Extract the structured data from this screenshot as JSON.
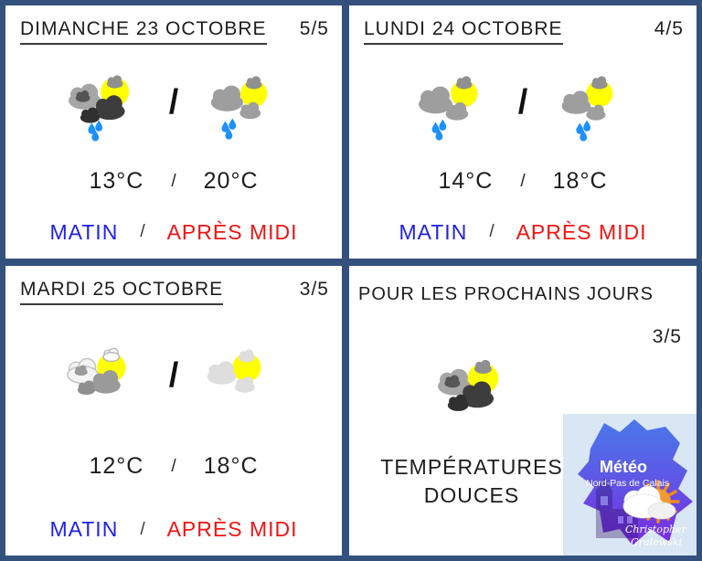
{
  "theme": {
    "border_color": "#34517e",
    "background": "#ffffff",
    "matin_color": "#1f1fe8",
    "apres_midi_color": "#f01414",
    "sun_yellow": "#ffff00",
    "rain_blue": "#1e90ff",
    "logo_blue": "#4a79ea",
    "logo_purple": "#7b2ae0",
    "logo_sun_orange": "#ef8a1d"
  },
  "cards": [
    {
      "title": "DIMANCHE 23 OCTOBRE",
      "score": "5/5",
      "sep": "/",
      "morning_icon": "sun-darkclouds-rain-icon",
      "afternoon_icon": "sun-clouds-rain-icon",
      "morning_temp": "13°C",
      "afternoon_temp": "20°C",
      "morning_label": "MATIN",
      "afternoon_label": "APRÈS MIDI"
    },
    {
      "title": "LUNDI 24 OCTOBRE",
      "score": "4/5",
      "sep": "/",
      "morning_icon": "sun-bigcloud-rain-icon",
      "afternoon_icon": "sun-cloud-rain-icon",
      "morning_temp": "14°C",
      "afternoon_temp": "18°C",
      "morning_label": "MATIN",
      "afternoon_label": "APRÈS MIDI"
    },
    {
      "title": "MARDI 25 OCTOBRE",
      "score": "3/5",
      "sep": "/",
      "morning_icon": "sun-lightclouds-icon",
      "afternoon_icon": "sun-paleclouds-icon",
      "morning_temp": "12°C",
      "afternoon_temp": "18°C",
      "morning_label": "MATIN",
      "afternoon_label": "APRÈS MIDI"
    }
  ],
  "outlook": {
    "title": "POUR LES PROCHAINS JOURS",
    "score": "3/5",
    "icon": "sun-darkclouds-icon",
    "summary": "TEMPÉRATURES DOUCES",
    "logo": {
      "brand": "Météo",
      "region": "Nord-Pas de Calais",
      "signature_line1": "Christopher",
      "signature_line2": "Gralewski"
    }
  }
}
